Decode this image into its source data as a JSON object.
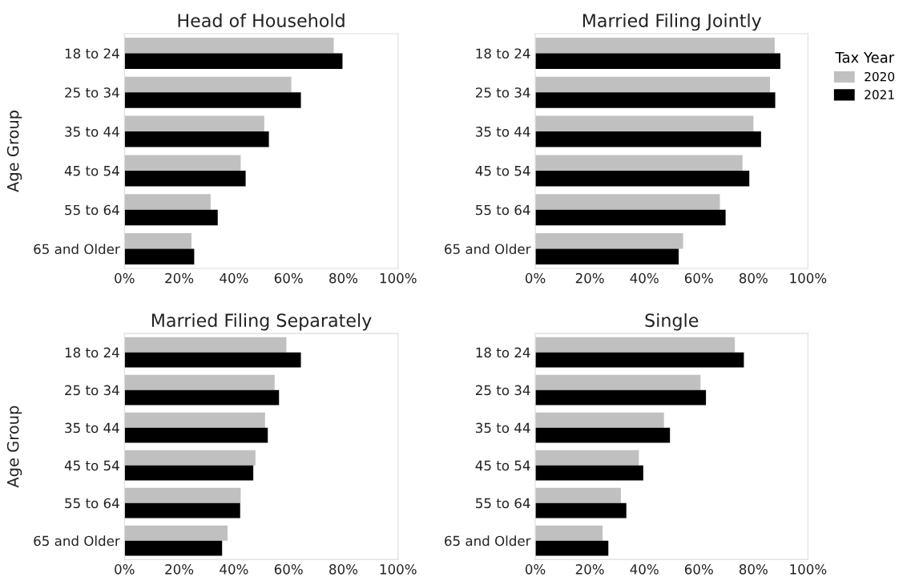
{
  "chart_data": [
    {
      "type": "bar",
      "orientation": "horizontal",
      "title": "Head of Household",
      "ylabel": "Age Group",
      "legend_title": "Tax Year",
      "categories": [
        "18 to 24",
        "25 to 34",
        "35 to 44",
        "45 to 54",
        "55 to 64",
        "65 and Older"
      ],
      "xlim": [
        0,
        100
      ],
      "xticks": [
        {
          "value": 0,
          "label": "0%"
        },
        {
          "value": 20,
          "label": "20%"
        },
        {
          "value": 40,
          "label": "40%"
        },
        {
          "value": 60,
          "label": "60%"
        },
        {
          "value": 80,
          "label": "80%"
        },
        {
          "value": 100,
          "label": "100%"
        }
      ],
      "grid": false,
      "legend": "right",
      "series": [
        {
          "name": "2020",
          "color": "#c0c0c0",
          "values": [
            76.5,
            61.0,
            51.1,
            42.5,
            31.5,
            24.5
          ]
        },
        {
          "name": "2021",
          "color": "#000000",
          "values": [
            79.7,
            64.5,
            52.8,
            44.3,
            34.1,
            25.5
          ]
        }
      ]
    },
    {
      "type": "bar",
      "orientation": "horizontal",
      "title": "Married Filing Jointly",
      "categories": [
        "18 to 24",
        "25 to 34",
        "35 to 44",
        "45 to 54",
        "55 to 64",
        "65 and Older"
      ],
      "xlim": [
        0,
        100
      ],
      "xticks": [
        {
          "value": 0,
          "label": "0%"
        },
        {
          "value": 20,
          "label": "20%"
        },
        {
          "value": 40,
          "label": "40%"
        },
        {
          "value": 60,
          "label": "60%"
        },
        {
          "value": 80,
          "label": "80%"
        },
        {
          "value": 100,
          "label": "100%"
        }
      ],
      "grid": false,
      "legend": false,
      "series": [
        {
          "name": "2020",
          "color": "#c0c0c0",
          "values": [
            87.8,
            86.1,
            80.0,
            76.0,
            67.7,
            54.2
          ]
        },
        {
          "name": "2021",
          "color": "#000000",
          "values": [
            89.9,
            88.0,
            82.8,
            78.5,
            69.8,
            52.6
          ]
        }
      ]
    },
    {
      "type": "bar",
      "orientation": "horizontal",
      "title": "Married Filing Separately",
      "ylabel": "Age Group",
      "categories": [
        "18 to 24",
        "25 to 34",
        "35 to 44",
        "45 to 54",
        "55 to 64",
        "65 and Older"
      ],
      "xlim": [
        0,
        100
      ],
      "xticks": [
        {
          "value": 0,
          "label": "0%"
        },
        {
          "value": 20,
          "label": "20%"
        },
        {
          "value": 40,
          "label": "40%"
        },
        {
          "value": 60,
          "label": "60%"
        },
        {
          "value": 80,
          "label": "80%"
        },
        {
          "value": 100,
          "label": "100%"
        }
      ],
      "grid": false,
      "legend": false,
      "series": [
        {
          "name": "2020",
          "color": "#c0c0c0",
          "values": [
            59.2,
            54.9,
            51.4,
            47.9,
            42.5,
            37.7
          ]
        },
        {
          "name": "2021",
          "color": "#000000",
          "values": [
            64.5,
            56.5,
            52.4,
            47.1,
            42.3,
            35.7
          ]
        }
      ]
    },
    {
      "type": "bar",
      "orientation": "horizontal",
      "title": "Single",
      "categories": [
        "18 to 24",
        "25 to 34",
        "35 to 44",
        "45 to 54",
        "55 to 64",
        "65 and Older"
      ],
      "xlim": [
        0,
        100
      ],
      "xticks": [
        {
          "value": 0,
          "label": "0%"
        },
        {
          "value": 20,
          "label": "20%"
        },
        {
          "value": 40,
          "label": "40%"
        },
        {
          "value": 60,
          "label": "60%"
        },
        {
          "value": 80,
          "label": "80%"
        },
        {
          "value": 100,
          "label": "100%"
        }
      ],
      "grid": false,
      "legend": false,
      "series": [
        {
          "name": "2020",
          "color": "#c0c0c0",
          "values": [
            73.2,
            60.6,
            47.2,
            38.0,
            31.4,
            24.7
          ]
        },
        {
          "name": "2021",
          "color": "#000000",
          "values": [
            76.5,
            62.6,
            49.4,
            39.6,
            33.4,
            26.8
          ]
        }
      ]
    }
  ]
}
